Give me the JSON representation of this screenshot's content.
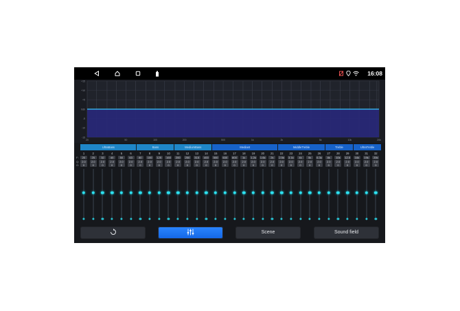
{
  "status": {
    "time": "16:08"
  },
  "graph": {
    "y_labels": [
      "+15",
      "+10",
      "+5",
      "0db",
      "-5",
      "-10",
      "-15"
    ],
    "x_labels": [
      "20",
      "50",
      "100",
      "200",
      "500",
      "1k",
      "2k",
      "5k",
      "10k",
      "20k"
    ]
  },
  "bands": [
    {
      "label": "UltraBass",
      "span": 6,
      "color": "#1f86c8"
    },
    {
      "label": "Bass",
      "span": 4,
      "color": "#1f86c8"
    },
    {
      "label": "MediumBass",
      "span": 4,
      "color": "#1f86c8"
    },
    {
      "label": "Mediant",
      "span": 7,
      "color": "#1762c9"
    },
    {
      "label": "MiddleTreble",
      "span": 5,
      "color": "#1762c9"
    },
    {
      "label": "Treble",
      "span": 3,
      "color": "#1762c9"
    },
    {
      "label": "UltraTreble",
      "span": 3,
      "color": "#1762c9"
    }
  ],
  "row_labels": {
    "freq": "F:",
    "q": "Q:",
    "gain": "G:"
  },
  "channels": [
    {
      "n": "1",
      "f": "20",
      "q": "2.0",
      "g": "0"
    },
    {
      "n": "2",
      "f": "25",
      "q": "2.0",
      "g": "0"
    },
    {
      "n": "3",
      "f": "32",
      "q": "2.0",
      "g": "0"
    },
    {
      "n": "4",
      "f": "40",
      "q": "2.0",
      "g": "0"
    },
    {
      "n": "5",
      "f": "50",
      "q": "2.0",
      "g": "0"
    },
    {
      "n": "6",
      "f": "63",
      "q": "2.0",
      "g": "0"
    },
    {
      "n": "7",
      "f": "80",
      "q": "2.0",
      "g": "0"
    },
    {
      "n": "8",
      "f": "100",
      "q": "2.0",
      "g": "0"
    },
    {
      "n": "9",
      "f": "125",
      "q": "2.0",
      "g": "0"
    },
    {
      "n": "10",
      "f": "160",
      "q": "2.0",
      "g": "0"
    },
    {
      "n": "11",
      "f": "200",
      "q": "2.0",
      "g": "0"
    },
    {
      "n": "12",
      "f": "250",
      "q": "2.0",
      "g": "0"
    },
    {
      "n": "13",
      "f": "315",
      "q": "2.0",
      "g": "0"
    },
    {
      "n": "14",
      "f": "400",
      "q": "2.0",
      "g": "0"
    },
    {
      "n": "15",
      "f": "500",
      "q": "2.0",
      "g": "0"
    },
    {
      "n": "16",
      "f": "630",
      "q": "2.0",
      "g": "0"
    },
    {
      "n": "17",
      "f": "800",
      "q": "2.0",
      "g": "0"
    },
    {
      "n": "18",
      "f": "1k",
      "q": "2.0",
      "g": "0"
    },
    {
      "n": "19",
      "f": "1.2k",
      "q": "2.0",
      "g": "0"
    },
    {
      "n": "20",
      "f": "1.6k",
      "q": "2.0",
      "g": "0"
    },
    {
      "n": "21",
      "f": "2k",
      "q": "2.0",
      "g": "0"
    },
    {
      "n": "22",
      "f": "2.5k",
      "q": "2.0",
      "g": "0"
    },
    {
      "n": "23",
      "f": "3.1k",
      "q": "2.0",
      "g": "0"
    },
    {
      "n": "24",
      "f": "4k",
      "q": "2.0",
      "g": "0"
    },
    {
      "n": "25",
      "f": "5k",
      "q": "2.0",
      "g": "0"
    },
    {
      "n": "26",
      "f": "6.3k",
      "q": "2.0",
      "g": "0"
    },
    {
      "n": "27",
      "f": "8k",
      "q": "2.0",
      "g": "0"
    },
    {
      "n": "28",
      "f": "10k",
      "q": "2.0",
      "g": "0"
    },
    {
      "n": "29",
      "f": "12.5",
      "q": "2.0",
      "g": "0"
    },
    {
      "n": "30",
      "f": "16k",
      "q": "2.0",
      "g": "0"
    },
    {
      "n": "31",
      "f": "19k",
      "q": "2.0",
      "g": "0"
    },
    {
      "n": "32",
      "f": "20k",
      "q": "2.0",
      "g": "0"
    }
  ],
  "buttons": {
    "reset_icon": "reset-icon",
    "eq_icon": "equalizer-sliders-icon",
    "scene": "Scene",
    "sound_field": "Sound field"
  },
  "colors": {
    "accent": "#2de1f0",
    "active_button": "#1e78f5",
    "curve_fill": "#28287a"
  }
}
